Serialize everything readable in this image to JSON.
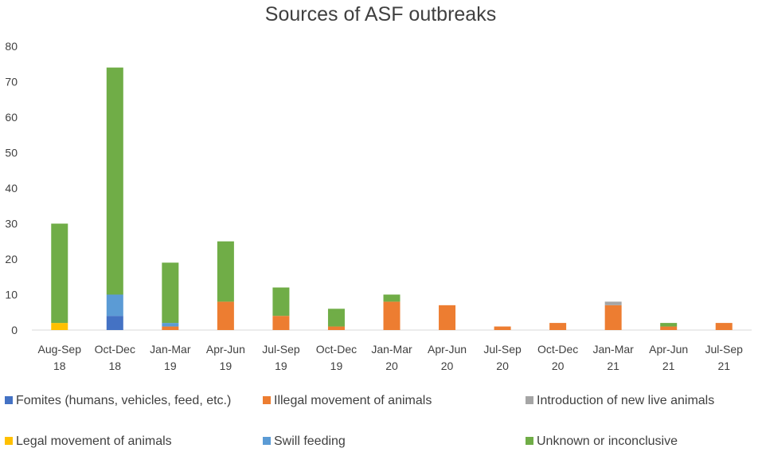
{
  "chart_data": {
    "type": "bar",
    "stacked": true,
    "title": "Sources of ASF outbreaks",
    "xlabel": "",
    "ylabel": "",
    "ylim": [
      0,
      80
    ],
    "yticks": [
      0,
      10,
      20,
      30,
      40,
      50,
      60,
      70,
      80
    ],
    "grid": false,
    "legend_position": "bottom",
    "categories": [
      [
        "Aug-Sep",
        "18"
      ],
      [
        "Oct-Dec",
        "18"
      ],
      [
        "Jan-Mar",
        "19"
      ],
      [
        "Apr-Jun",
        "19"
      ],
      [
        "Jul-Sep",
        "19"
      ],
      [
        "Oct-Dec",
        "19"
      ],
      [
        "Jan-Mar",
        "20"
      ],
      [
        "Apr-Jun",
        "20"
      ],
      [
        "Jul-Sep",
        "20"
      ],
      [
        "Oct-Dec",
        "20"
      ],
      [
        "Jan-Mar",
        "21"
      ],
      [
        "Apr-Jun",
        "21"
      ],
      [
        "Jul-Sep",
        "21"
      ]
    ],
    "series": [
      {
        "name": "Fomites (humans, vehicles, feed, etc.)",
        "color": "#4472C4",
        "values": [
          0,
          4,
          0,
          0,
          0,
          0,
          0,
          0,
          0,
          0,
          0,
          0,
          0
        ]
      },
      {
        "name": "Legal movement of animals",
        "color": "#FFC000",
        "values": [
          2,
          0,
          0,
          0,
          0,
          0,
          0,
          0,
          0,
          0,
          0,
          0,
          0
        ]
      },
      {
        "name": "Illegal movement of animals",
        "color": "#ED7D31",
        "values": [
          0,
          0,
          1,
          8,
          4,
          1,
          8,
          7,
          1,
          2,
          7,
          1,
          2
        ]
      },
      {
        "name": "Swill feeding",
        "color": "#5B9BD5",
        "values": [
          0,
          6,
          1,
          0,
          0,
          0,
          0,
          0,
          0,
          0,
          0,
          0,
          0
        ]
      },
      {
        "name": "Introduction of new live animals",
        "color": "#A5A5A5",
        "values": [
          0,
          0,
          0,
          0,
          0,
          0,
          0,
          0,
          0,
          0,
          1,
          0,
          0
        ]
      },
      {
        "name": "Unknown or inconclusive",
        "color": "#70AD47",
        "values": [
          28,
          64,
          17,
          17,
          8,
          5,
          2,
          0,
          0,
          0,
          0,
          1,
          0
        ]
      }
    ],
    "legend_order": [
      "Fomites (humans, vehicles, feed, etc.)",
      "Illegal movement of animals",
      "Introduction of new live animals",
      "Legal movement of animals",
      "Swill feeding",
      "Unknown or inconclusive"
    ]
  }
}
